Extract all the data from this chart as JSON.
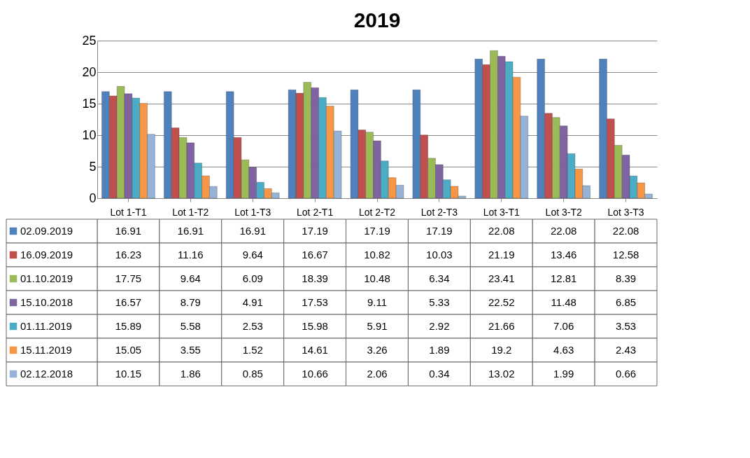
{
  "chart_data": {
    "type": "bar",
    "title": "2019",
    "categories": [
      "Lot 1-T1",
      "Lot 1-T2",
      "Lot 1-T3",
      "Lot 2-T1",
      "Lot 2-T2",
      "Lot 2-T3",
      "Lot 3-T1",
      "Lot 3-T2",
      "Lot 3-T3"
    ],
    "series": [
      {
        "name": "02.09.2019",
        "color": "#4f81bd",
        "values": [
          16.91,
          16.91,
          16.91,
          17.19,
          17.19,
          17.19,
          22.08,
          22.08,
          22.08
        ]
      },
      {
        "name": "16.09.2019",
        "color": "#c0504d",
        "values": [
          16.23,
          11.16,
          9.64,
          16.67,
          10.82,
          10.03,
          21.19,
          13.46,
          12.58
        ]
      },
      {
        "name": "01.10.2019",
        "color": "#9bbb59",
        "values": [
          17.75,
          9.64,
          6.09,
          18.39,
          10.48,
          6.34,
          23.41,
          12.81,
          8.39
        ]
      },
      {
        "name": "15.10.2018",
        "color": "#8064a2",
        "values": [
          16.57,
          8.79,
          4.91,
          17.53,
          9.11,
          5.33,
          22.52,
          11.48,
          6.85
        ]
      },
      {
        "name": "01.11.2019",
        "color": "#4bacc6",
        "values": [
          15.89,
          5.58,
          2.53,
          15.98,
          5.91,
          2.92,
          21.66,
          7.06,
          3.53
        ]
      },
      {
        "name": "15.11.2019",
        "color": "#f79646",
        "values": [
          15.05,
          3.55,
          1.52,
          14.61,
          3.26,
          1.89,
          19.2,
          4.63,
          2.43
        ]
      },
      {
        "name": "02.12.2018",
        "color": "#95b3d7",
        "values": [
          10.15,
          1.86,
          0.85,
          10.66,
          2.06,
          0.34,
          13.02,
          1.99,
          0.66
        ]
      }
    ],
    "ylim": [
      0,
      25
    ],
    "yticks": [
      0,
      5,
      10,
      15,
      20,
      25
    ],
    "grid": "y",
    "legend": "bottom left",
    "data_labels": true
  }
}
